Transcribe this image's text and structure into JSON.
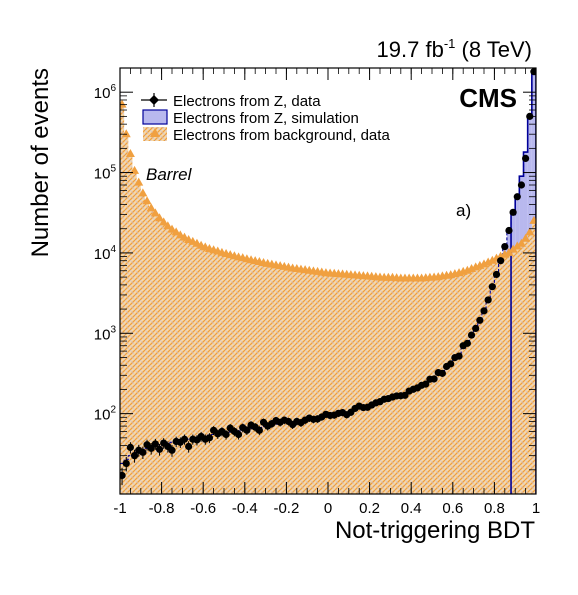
{
  "chart_data": {
    "type": "histogram",
    "lumi_label": "19.7 fb",
    "lumi_sup": "-1",
    "lumi_energy": " (8 TeV)",
    "experiment": "CMS",
    "region": "Barrel",
    "panel": "a)",
    "xlabel": "Not-triggering BDT",
    "ylabel": "Number of events",
    "xlim": [
      -1,
      1
    ],
    "ylim": [
      10,
      2000000
    ],
    "log_y": true,
    "x_ticks": [
      {
        "v": -1,
        "t": "-1"
      },
      {
        "v": -0.8,
        "t": "-0.8"
      },
      {
        "v": -0.6,
        "t": "-0.6"
      },
      {
        "v": -0.4,
        "t": "-0.4"
      },
      {
        "v": -0.2,
        "t": "-0.2"
      },
      {
        "v": 0,
        "t": "0"
      },
      {
        "v": 0.2,
        "t": "0.2"
      },
      {
        "v": 0.4,
        "t": "0.4"
      },
      {
        "v": 0.6,
        "t": "0.6"
      },
      {
        "v": 0.8,
        "t": "0.8"
      },
      {
        "v": 1,
        "t": "1"
      }
    ],
    "y_ticks": [
      {
        "v": 100,
        "base": "10",
        "exp": "2"
      },
      {
        "v": 1000,
        "base": "10",
        "exp": "3"
      },
      {
        "v": 10000,
        "base": "10",
        "exp": "4"
      },
      {
        "v": 100000,
        "base": "10",
        "exp": "5"
      },
      {
        "v": 1000000,
        "base": "10",
        "exp": "6"
      }
    ],
    "legend_position": "top-left",
    "series": [
      {
        "name": "Electrons from Z, data",
        "kind": "points",
        "color": "#000000",
        "x": [
          -0.99,
          -0.97,
          -0.95,
          -0.93,
          -0.91,
          -0.89,
          -0.87,
          -0.85,
          -0.83,
          -0.81,
          -0.79,
          -0.77,
          -0.75,
          -0.73,
          -0.71,
          -0.69,
          -0.67,
          -0.65,
          -0.63,
          -0.61,
          -0.59,
          -0.57,
          -0.55,
          -0.53,
          -0.51,
          -0.49,
          -0.47,
          -0.45,
          -0.43,
          -0.41,
          -0.39,
          -0.37,
          -0.35,
          -0.33,
          -0.31,
          -0.29,
          -0.27,
          -0.25,
          -0.23,
          -0.21,
          -0.19,
          -0.17,
          -0.15,
          -0.13,
          -0.11,
          -0.09,
          -0.07,
          -0.05,
          -0.03,
          -0.01,
          0.01,
          0.03,
          0.05,
          0.07,
          0.09,
          0.11,
          0.13,
          0.15,
          0.17,
          0.19,
          0.21,
          0.23,
          0.25,
          0.27,
          0.29,
          0.31,
          0.33,
          0.35,
          0.37,
          0.39,
          0.41,
          0.43,
          0.45,
          0.47,
          0.49,
          0.51,
          0.53,
          0.55,
          0.57,
          0.59,
          0.61,
          0.63,
          0.65,
          0.67,
          0.69,
          0.71,
          0.73,
          0.75,
          0.77,
          0.79,
          0.81,
          0.83,
          0.85,
          0.87,
          0.89,
          0.91,
          0.93,
          0.95,
          0.97,
          0.99
        ],
        "values": [
          17,
          24,
          38,
          30,
          35,
          33,
          41,
          37,
          42,
          36,
          43,
          39,
          35,
          45,
          44,
          48,
          39,
          48,
          47,
          52,
          48,
          50,
          62,
          56,
          60,
          55,
          66,
          60,
          55,
          67,
          62,
          72,
          68,
          62,
          78,
          70,
          75,
          82,
          78,
          83,
          80,
          73,
          80,
          77,
          83,
          88,
          85,
          86,
          91,
          98,
          95,
          96,
          101,
          103,
          97,
          104,
          116,
          124,
          119,
          120,
          128,
          136,
          141,
          151,
          154,
          161,
          166,
          167,
          169,
          191,
          201,
          209,
          225,
          233,
          268,
          270,
          324,
          317,
          386,
          416,
          498,
          520,
          700,
          750,
          950,
          1150,
          1450,
          1900,
          2600,
          3800,
          5400,
          8000,
          12000,
          19000,
          32000,
          50000,
          70000,
          150000,
          500000,
          1800000
        ]
      },
      {
        "name": "Electrons from Z, simulation",
        "kind": "filled-step",
        "color": "#b8b8ee",
        "edge": "#000099",
        "x": [
          -0.99,
          -0.97,
          -0.95,
          -0.93,
          -0.91,
          -0.89,
          -0.87,
          -0.85,
          -0.83,
          -0.81,
          -0.79,
          -0.77,
          -0.75,
          -0.73,
          -0.71,
          -0.69,
          -0.67,
          -0.65,
          -0.63,
          -0.61,
          -0.59,
          -0.57,
          -0.55,
          -0.53,
          -0.51,
          -0.49,
          -0.47,
          -0.45,
          -0.43,
          -0.41,
          -0.39,
          -0.37,
          -0.35,
          -0.33,
          -0.31,
          -0.29,
          -0.27,
          -0.25,
          -0.23,
          -0.21,
          -0.19,
          -0.17,
          -0.15,
          -0.13,
          -0.11,
          -0.09,
          -0.07,
          -0.05,
          -0.03,
          -0.01,
          0.01,
          0.03,
          0.05,
          0.07,
          0.09,
          0.11,
          0.13,
          0.15,
          0.17,
          0.19,
          0.21,
          0.23,
          0.25,
          0.27,
          0.29,
          0.31,
          0.33,
          0.35,
          0.37,
          0.39,
          0.41,
          0.43,
          0.45,
          0.47,
          0.49,
          0.51,
          0.53,
          0.55,
          0.57,
          0.59,
          0.61,
          0.63,
          0.65,
          0.67,
          0.69,
          0.71,
          0.73,
          0.75,
          0.77,
          0.79,
          0.81,
          0.83,
          0.85,
          0.87,
          0.89,
          0.91,
          0.93,
          0.95,
          0.97,
          0.99
        ],
        "values": [
          24,
          27,
          30,
          33,
          34,
          36,
          37,
          39,
          40,
          41,
          42,
          43,
          44,
          45,
          46,
          47,
          48,
          49,
          50,
          51,
          52,
          54,
          55,
          56,
          57,
          58,
          59,
          60,
          61,
          62,
          63,
          65,
          66,
          67,
          69,
          70,
          72,
          74,
          76,
          78,
          80,
          80,
          81,
          82,
          84,
          86,
          88,
          90,
          92,
          94,
          96,
          98,
          100,
          102,
          104,
          106,
          110,
          115,
          120,
          124,
          128,
          133,
          138,
          144,
          150,
          157,
          165,
          172,
          180,
          190,
          200,
          212,
          225,
          240,
          260,
          285,
          310,
          340,
          380,
          420,
          470,
          540,
          650,
          780,
          940,
          1150,
          1450,
          1900,
          2600,
          3700,
          5300,
          7800,
          12000,
          19000,
          30000,
          50000,
          90000,
          180000,
          500000,
          1800000
        ]
      },
      {
        "name": "Electrons from background, data",
        "kind": "filled-markers",
        "color": "#f0a040",
        "x": [
          -0.99,
          -0.97,
          -0.95,
          -0.93,
          -0.91,
          -0.89,
          -0.87,
          -0.85,
          -0.83,
          -0.81,
          -0.79,
          -0.77,
          -0.75,
          -0.73,
          -0.71,
          -0.69,
          -0.67,
          -0.65,
          -0.63,
          -0.61,
          -0.59,
          -0.57,
          -0.55,
          -0.53,
          -0.51,
          -0.49,
          -0.47,
          -0.45,
          -0.43,
          -0.41,
          -0.39,
          -0.37,
          -0.35,
          -0.33,
          -0.31,
          -0.29,
          -0.27,
          -0.25,
          -0.23,
          -0.21,
          -0.19,
          -0.17,
          -0.15,
          -0.13,
          -0.11,
          -0.09,
          -0.07,
          -0.05,
          -0.03,
          -0.01,
          0.01,
          0.03,
          0.05,
          0.07,
          0.09,
          0.11,
          0.13,
          0.15,
          0.17,
          0.19,
          0.21,
          0.23,
          0.25,
          0.27,
          0.29,
          0.31,
          0.33,
          0.35,
          0.37,
          0.39,
          0.41,
          0.43,
          0.45,
          0.47,
          0.49,
          0.51,
          0.53,
          0.55,
          0.57,
          0.59,
          0.61,
          0.63,
          0.65,
          0.67,
          0.69,
          0.71,
          0.73,
          0.75,
          0.77,
          0.79,
          0.81,
          0.83,
          0.85,
          0.87,
          0.89,
          0.91,
          0.93,
          0.95,
          0.97,
          0.99
        ],
        "values": [
          700000,
          300000,
          170000,
          105000,
          75000,
          55000,
          44000,
          36000,
          31000,
          27000,
          24000,
          21500,
          19500,
          18000,
          16500,
          15500,
          14500,
          13700,
          13000,
          12300,
          11700,
          11200,
          10800,
          10400,
          10000,
          9700,
          9400,
          9100,
          8800,
          8600,
          8350,
          8100,
          7900,
          7700,
          7500,
          7300,
          7150,
          7000,
          6850,
          6700,
          6550,
          6400,
          6300,
          6200,
          6100,
          6000,
          5900,
          5800,
          5700,
          5600,
          5550,
          5500,
          5450,
          5400,
          5350,
          5300,
          5250,
          5200,
          5150,
          5100,
          5050,
          5000,
          4950,
          4900,
          4900,
          4900,
          4850,
          4800,
          4800,
          4800,
          4800,
          4800,
          4800,
          4850,
          4900,
          4950,
          5000,
          5100,
          5200,
          5300,
          5450,
          5600,
          5800,
          6000,
          6300,
          6600,
          6900,
          7200,
          7600,
          8000,
          8500,
          9000,
          9500,
          10000,
          11000,
          12000,
          13000,
          15000,
          18000,
          25000
        ]
      }
    ]
  }
}
